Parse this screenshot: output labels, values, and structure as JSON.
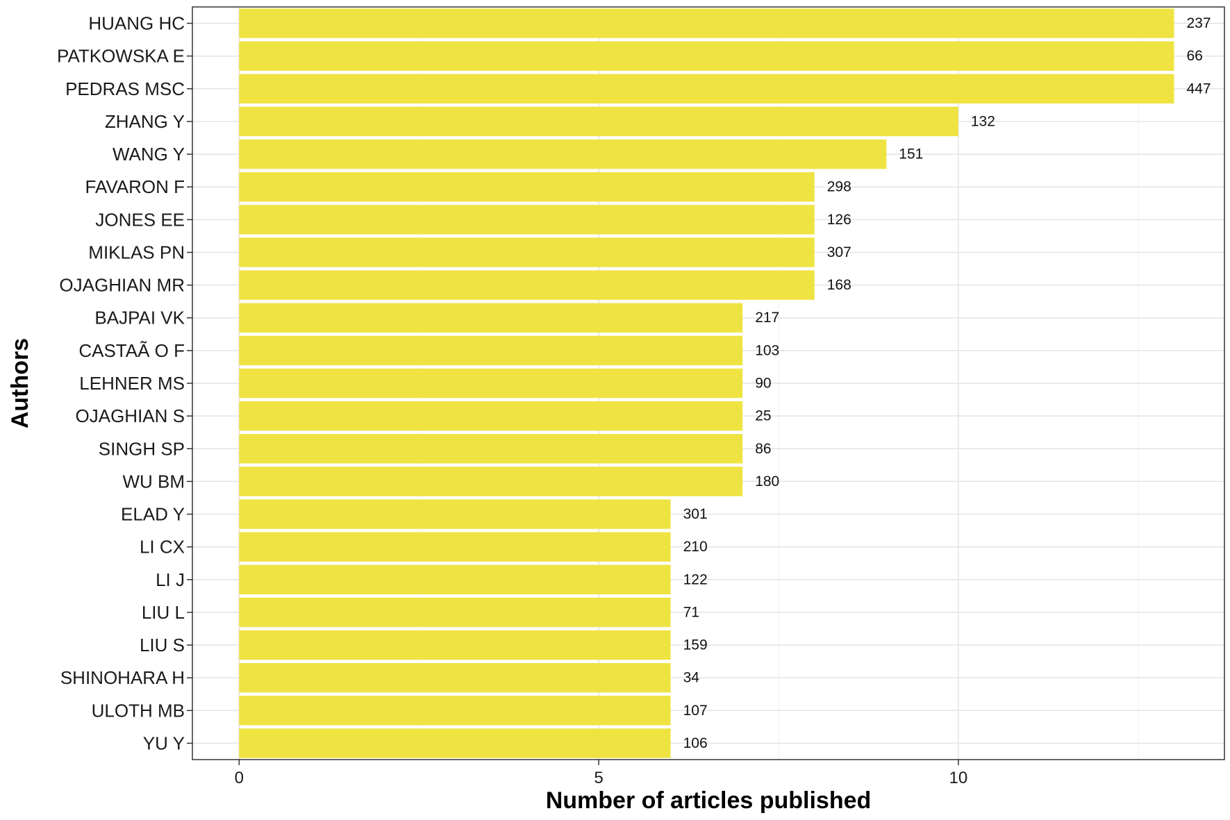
{
  "chart_data": {
    "type": "bar",
    "orientation": "horizontal",
    "xlabel": "Number of articles published",
    "ylabel": "Authors",
    "xlim": [
      -0.65,
      13.7
    ],
    "x_ticks": [
      0,
      5,
      10
    ],
    "grid": true,
    "bar_color": "#EFE342",
    "categories": [
      "YU Y",
      "ULOTH MB",
      "SHINOHARA H",
      "LIU S",
      "LIU L",
      "LI J",
      "LI CX",
      "ELAD Y",
      "WU BM",
      "SINGH SP",
      "OJAGHIAN S",
      "LEHNER MS",
      "CASTAÃ O F",
      "BAJPAI VK",
      "OJAGHIAN MR",
      "MIKLAS PN",
      "JONES EE",
      "FAVARON F",
      "WANG Y",
      "ZHANG Y",
      "PEDRAS MSC",
      "PATKOWSKA E",
      "HUANG HC"
    ],
    "values": [
      6,
      6,
      6,
      6,
      6,
      6,
      6,
      6,
      7,
      7,
      7,
      7,
      7,
      7,
      8,
      8,
      8,
      8,
      9,
      10,
      13,
      13,
      13
    ],
    "data_labels": [
      "106",
      "107",
      "34",
      "159",
      "71",
      "122",
      "210",
      "301",
      "180",
      "86",
      "25",
      "90",
      "103",
      "217",
      "168",
      "307",
      "126",
      "298",
      "151",
      "132",
      "447",
      "66",
      "237"
    ]
  }
}
